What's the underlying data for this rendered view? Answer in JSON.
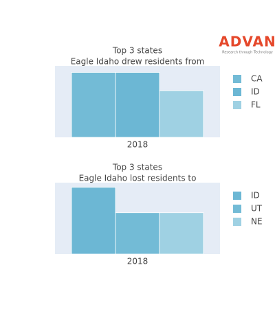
{
  "logo": {
    "name": "ADVAN",
    "tagline": "Research through Technology"
  },
  "chart_data": [
    {
      "type": "bar",
      "title": "Top 3 states",
      "subtitle": "Eagle Idaho drew residents from",
      "categories": [
        "2018"
      ],
      "ylim": [
        0,
        1.1
      ],
      "series": [
        {
          "name": "CA",
          "color": "#73bbd6",
          "values": [
            1
          ]
        },
        {
          "name": "ID",
          "color": "#6cb7d4",
          "values": [
            1
          ]
        },
        {
          "name": "FL",
          "color": "#9fd1e3",
          "values": [
            0.72
          ]
        }
      ]
    },
    {
      "type": "bar",
      "title": "Top 3 states",
      "subtitle": "Eagle Idaho lost residents to",
      "categories": [
        "2018"
      ],
      "ylim": [
        0,
        1.07
      ],
      "series": [
        {
          "name": "ID",
          "color": "#6cb7d4",
          "values": [
            1
          ]
        },
        {
          "name": "UT",
          "color": "#73bbd6",
          "values": [
            0.62
          ]
        },
        {
          "name": "NE",
          "color": "#9fd1e3",
          "values": [
            0.62
          ]
        }
      ]
    }
  ]
}
